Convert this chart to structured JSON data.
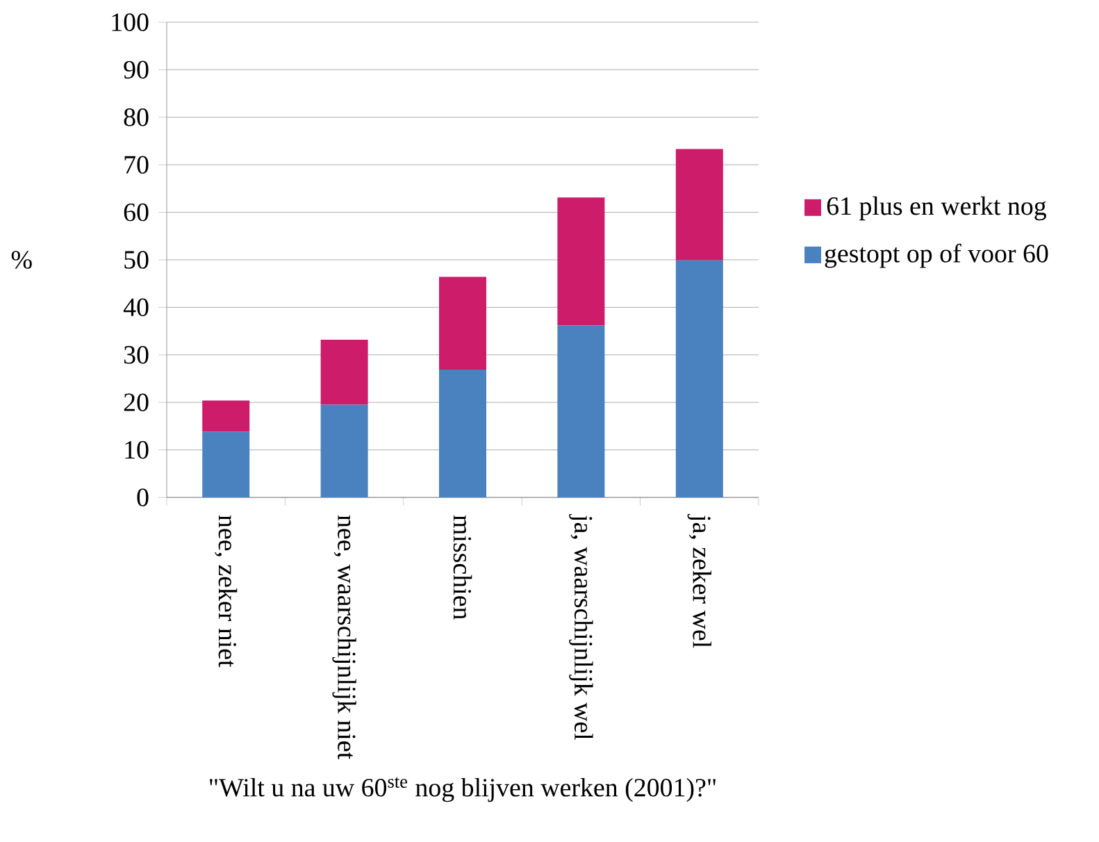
{
  "chart_data": {
    "type": "bar",
    "stacked": true,
    "xlabel": "\"Wilt u na uw 60$^{ste}$ nog blijven werken (2001)?\"",
    "ylabel": "%",
    "categories": [
      "nee, zeker niet",
      "nee, waarschijnlijk niet",
      "misschien",
      "ja, waarschijnlijk wel",
      "ja, zeker wel"
    ],
    "series": [
      {
        "name": "gestopt op of voor 60",
        "color": "#4a81bf",
        "values": [
          13.8,
          19.5,
          26.9,
          36.2,
          49.9
        ]
      },
      {
        "name": "61 plus en werkt nog",
        "color": "#cd1c6a",
        "values": [
          6.6,
          13.7,
          19.5,
          26.9,
          23.4
        ]
      }
    ],
    "ylim": [
      0,
      100
    ],
    "yticks": [
      0,
      10,
      20,
      30,
      40,
      50,
      60,
      70,
      80,
      90,
      100
    ],
    "grid": "y",
    "legend": "right"
  }
}
